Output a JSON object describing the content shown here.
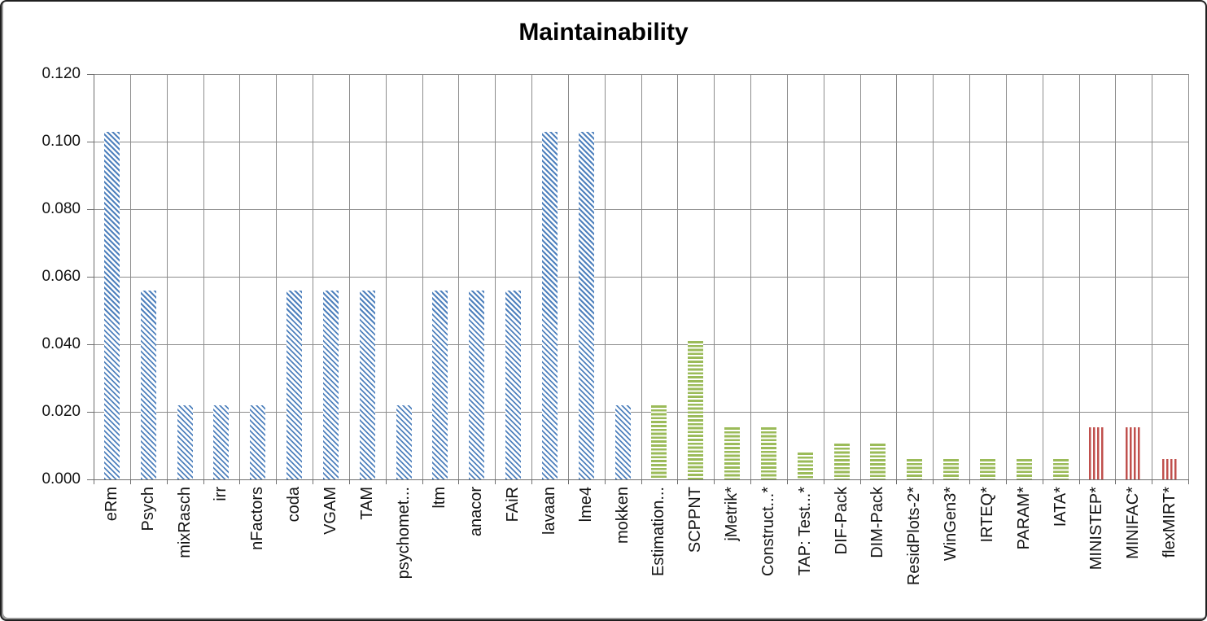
{
  "chart_data": {
    "type": "bar",
    "title": "Maintainability",
    "xlabel": "",
    "ylabel": "",
    "ylim": [
      0,
      0.12
    ],
    "ytick_step": 0.02,
    "ytick_labels": [
      "0.000",
      "0.020",
      "0.040",
      "0.060",
      "0.080",
      "0.100",
      "0.120"
    ],
    "grid": true,
    "legend": "none",
    "categories": [
      "eRm",
      "Psych",
      "mixRasch",
      "irr",
      "nFactors",
      "coda",
      "VGAM",
      "TAM",
      "psychomet...",
      "ltm",
      "anacor",
      "FAiR",
      "lavaan",
      "lme4",
      "mokken",
      "Estimation...",
      "SCPPNT",
      "jMetrik*",
      "Construct...*",
      "TAP: Test...*",
      "DIF-Pack",
      "DIM-Pack",
      "ResidPlots-2*",
      "WinGen3*",
      "IRTEQ*",
      "PARAM*",
      "IATA*",
      "MINISTEP*",
      "MINIFAC*",
      "flexMIRT*"
    ],
    "values": [
      0.103,
      0.056,
      0.022,
      0.022,
      0.022,
      0.056,
      0.056,
      0.056,
      0.022,
      0.056,
      0.056,
      0.056,
      0.103,
      0.103,
      0.022,
      0.022,
      0.041,
      0.0155,
      0.0155,
      0.008,
      0.0105,
      0.0105,
      0.006,
      0.006,
      0.006,
      0.006,
      0.006,
      0.0155,
      0.0155,
      0.006
    ],
    "bar_groups": [
      {
        "name": "blue-diagonal-hatch",
        "color": "#4F81BD",
        "hatch": "diagonal",
        "start": 0,
        "end": 14
      },
      {
        "name": "green-horizontal-hatch",
        "color": "#9BBB59",
        "hatch": "horizontal",
        "start": 15,
        "end": 26
      },
      {
        "name": "red-vertical-hatch",
        "color": "#C0504D",
        "hatch": "vertical",
        "start": 27,
        "end": 29
      }
    ],
    "colors": {
      "gridline": "#8c8c8c",
      "axis": "#6e6e6e",
      "background": "#ffffff",
      "title_text": "#000000",
      "tick_text": "#141414"
    }
  }
}
